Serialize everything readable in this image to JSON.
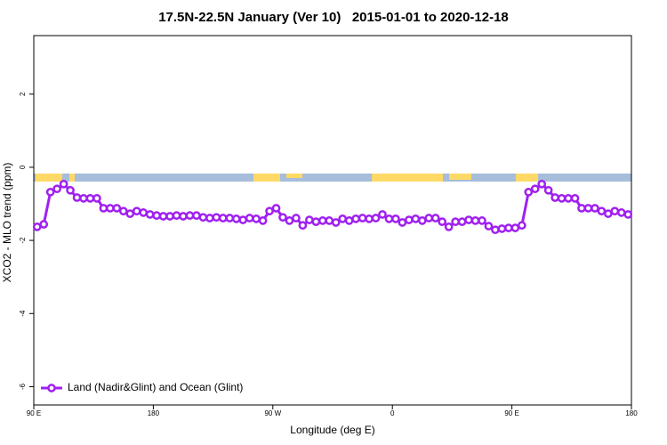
{
  "chart_data": {
    "type": "line",
    "title": "17.5N-22.5N January (Ver 10)   2015-01-01 to 2020-12-18",
    "x_label": "Longitude (deg E)",
    "y_label": "XCO2 - MLO trend (ppm)",
    "x": [
      92.5,
      97.5,
      102.5,
      107.5,
      112.5,
      117.5,
      122.5,
      127.5,
      132.5,
      137.5,
      142.5,
      147.5,
      152.5,
      157.5,
      162.5,
      167.5,
      172.5,
      177.5,
      182.5,
      187.5,
      192.5,
      197.5,
      202.5,
      207.5,
      212.5,
      217.5,
      222.5,
      227.5,
      232.5,
      237.5,
      242.5,
      247.5,
      252.5,
      257.5,
      262.5,
      267.5,
      272.5,
      277.5,
      282.5,
      287.5,
      292.5,
      297.5,
      302.5,
      307.5,
      312.5,
      317.5,
      322.5,
      327.5,
      332.5,
      337.5,
      342.5,
      347.5,
      352.5,
      357.5,
      362.5,
      367.5,
      372.5,
      377.5,
      382.5,
      387.5,
      392.5,
      397.5,
      402.5,
      407.5,
      412.5,
      417.5,
      422.5,
      427.5,
      432.5,
      437.5,
      442.5,
      447.5,
      452.5,
      457.5,
      462.5,
      467.5,
      472.5,
      477.5,
      482.5,
      487.5,
      492.5,
      497.5,
      502.5,
      507.5,
      512.5,
      517.5,
      522.5,
      527.5,
      532.5,
      537.5
    ],
    "series": [
      {
        "name": "Land (Nadir&Glint) and Ocean (Glint)",
        "color": "#a020f0",
        "values": [
          -1.63,
          -1.56,
          -0.68,
          -0.59,
          -0.46,
          -0.63,
          -0.83,
          -0.85,
          -0.85,
          -0.85,
          -1.12,
          -1.12,
          -1.12,
          -1.2,
          -1.27,
          -1.2,
          -1.24,
          -1.29,
          -1.32,
          -1.34,
          -1.34,
          -1.32,
          -1.34,
          -1.32,
          -1.32,
          -1.37,
          -1.39,
          -1.37,
          -1.39,
          -1.39,
          -1.41,
          -1.44,
          -1.39,
          -1.41,
          -1.46,
          -1.2,
          -1.12,
          -1.37,
          -1.46,
          -1.39,
          -1.59,
          -1.44,
          -1.49,
          -1.46,
          -1.46,
          -1.51,
          -1.41,
          -1.46,
          -1.41,
          -1.39,
          -1.41,
          -1.39,
          -1.29,
          -1.41,
          -1.41,
          -1.51,
          -1.44,
          -1.41,
          -1.46,
          -1.39,
          -1.39,
          -1.49,
          -1.63,
          -1.49,
          -1.49,
          -1.44,
          -1.46,
          -1.46,
          -1.61,
          -1.71,
          -1.68,
          -1.66,
          -1.66,
          -1.59,
          -0.68,
          -0.59,
          -0.46,
          -0.63,
          -0.83,
          -0.85,
          -0.85,
          -0.85,
          -1.12,
          -1.12,
          -1.12,
          -1.2,
          -1.27,
          -1.2,
          -1.24,
          -1.29
        ]
      }
    ],
    "xlim": [
      90,
      540
    ],
    "xticks": [
      {
        "value": 90,
        "label": "90 E"
      },
      180,
      {
        "value": 270,
        "label": "90 W"
      },
      {
        "value": 360,
        "label": "0"
      },
      {
        "value": 450,
        "label": "90 E"
      },
      {
        "value": 540,
        "label": "180"
      }
    ],
    "ylim": [
      -6.5,
      3.6
    ],
    "yticks": [
      -6,
      -4,
      -2,
      0,
      2
    ],
    "legend": "bottomleft"
  }
}
